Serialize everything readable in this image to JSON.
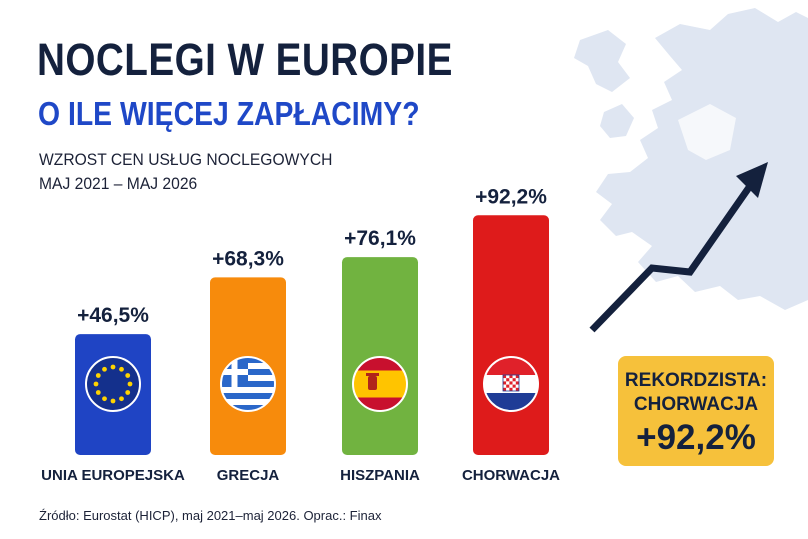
{
  "header": {
    "title": "NOCLEGI W EUROPIE",
    "subtitle": "O ILE WIĘCEJ ZAPŁACIMY?",
    "desc_line1": "WZROST CEN USŁUG NOCLEGOWYCH",
    "desc_line2": "MAJ 2021 – MAJ 2026"
  },
  "chart_data": {
    "type": "bar",
    "categories": [
      "UNIA EUROPEJSKA",
      "GRECJA",
      "HISZPANIA",
      "CHORWACJA"
    ],
    "values": [
      46.5,
      68.3,
      76.1,
      92.2
    ],
    "value_labels": [
      "+46,5%",
      "+68,3%",
      "+76,1%",
      "+92,2%"
    ],
    "colors": [
      "#1f44c4",
      "#f78b0c",
      "#71b340",
      "#de1b1b"
    ],
    "flag_icons": [
      "eu-flag-icon",
      "greece-flag-icon",
      "spain-flag-icon",
      "croatia-flag-icon"
    ],
    "ylim": [
      0,
      100
    ],
    "grid": false,
    "legend": "none"
  },
  "record_box": {
    "line1": "REKORDZISTA:",
    "line2": "CHORWACJA",
    "value": "+92,2%",
    "color": "#f6c13b"
  },
  "decor": {
    "map_icon": "europe-map-icon",
    "arrow_icon": "trend-up-arrow-icon",
    "arrow_color": "#14213d",
    "map_color": "#dfe6f2"
  },
  "source": "Źródło: Eurostat (HICP), maj 2021–maj 2026. Oprac.: Finax"
}
